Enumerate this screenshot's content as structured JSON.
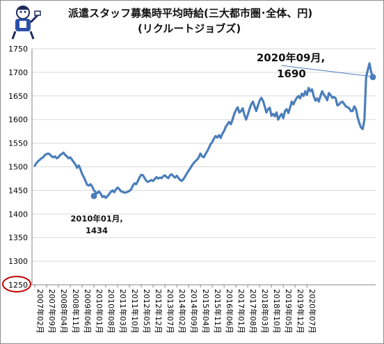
{
  "title": {
    "line1": "派遣スタッフ募集時平均時給(三大都市圏･全体、円)",
    "line2": "(リクルートジョブズ)"
  },
  "colors": {
    "line": "#4a7ebb",
    "grid": "#d9d9d9",
    "axis_text": "#000000",
    "highlight_circle": "#c00000"
  },
  "annotations": [
    {
      "label": "2010年01月,",
      "value_text": "1434",
      "target": "2010年01月"
    },
    {
      "label": "2020年09月,",
      "value_text": "1690",
      "target": "2020年09月"
    }
  ],
  "chart_data": {
    "type": "line",
    "title": "派遣スタッフ募集時平均時給(三大都市圏･全体、円) (リクルートジョブズ)",
    "xlabel": "",
    "ylabel": "",
    "ylim": [
      1250,
      1750
    ],
    "y_ticks": [
      1250,
      1300,
      1350,
      1400,
      1450,
      1500,
      1550,
      1600,
      1650,
      1700,
      1750
    ],
    "x_tick_labels": [
      "2007年02月",
      "2007年09月",
      "2008年04月",
      "2008年11月",
      "2009年06月",
      "2010年01月",
      "2010年08月",
      "2011年03月",
      "2011年10月",
      "2012年05月",
      "2012年12月",
      "2013年07月",
      "2014年02月",
      "2014年09月",
      "2015年04月",
      "2015年11月",
      "2016年06月",
      "2017年01月",
      "2017年08月",
      "2018年03月",
      "2018年10月",
      "2019年05月",
      "2019年12月",
      "2020年07月"
    ],
    "grid": true,
    "legend": "none",
    "x_start": "2007年02月",
    "x_end": "2020年09月",
    "series": [
      {
        "values": [
          1502,
          1508,
          1512,
          1515,
          1518,
          1520,
          1525,
          1527,
          1528,
          1526,
          1522,
          1520,
          1522,
          1518,
          1520,
          1525,
          1527,
          1530,
          1525,
          1522,
          1518,
          1520,
          1515,
          1510,
          1505,
          1498,
          1503,
          1495,
          1485,
          1478,
          1470,
          1462,
          1460,
          1463,
          1458,
          1450,
          1446,
          1444,
          1448,
          1443,
          1436,
          1438,
          1434,
          1438,
          1442,
          1447,
          1450,
          1446,
          1452,
          1456,
          1453,
          1448,
          1447,
          1445,
          1446,
          1447,
          1449,
          1452,
          1460,
          1465,
          1463,
          1470,
          1478,
          1483,
          1482,
          1476,
          1470,
          1468,
          1470,
          1472,
          1470,
          1474,
          1478,
          1475,
          1477,
          1476,
          1480,
          1482,
          1478,
          1476,
          1482,
          1484,
          1480,
          1477,
          1481,
          1476,
          1472,
          1470,
          1474,
          1480,
          1486,
          1492,
          1497,
          1503,
          1508,
          1512,
          1515,
          1520,
          1528,
          1522,
          1520,
          1527,
          1533,
          1540,
          1548,
          1552,
          1560,
          1565,
          1562,
          1567,
          1561,
          1570,
          1576,
          1585,
          1590,
          1595,
          1590,
          1600,
          1612,
          1620,
          1626,
          1615,
          1618,
          1624,
          1610,
          1600,
          1610,
          1622,
          1632,
          1638,
          1628,
          1618,
          1630,
          1640,
          1646,
          1640,
          1628,
          1615,
          1622,
          1625,
          1608,
          1612,
          1607,
          1615,
          1600,
          1607,
          1612,
          1603,
          1618,
          1622,
          1614,
          1625,
          1638,
          1632,
          1640,
          1646,
          1650,
          1645,
          1655,
          1650,
          1660,
          1652,
          1667,
          1660,
          1664,
          1650,
          1640,
          1645,
          1638,
          1650,
          1660,
          1653,
          1648,
          1641,
          1656,
          1652,
          1646,
          1648,
          1645,
          1630,
          1632,
          1636,
          1638,
          1633,
          1628,
          1626,
          1624,
          1618,
          1618,
          1628,
          1622,
          1605,
          1592,
          1583,
          1580,
          1600,
          1690,
          1705,
          1719,
          1700,
          1690
        ]
      }
    ]
  }
}
